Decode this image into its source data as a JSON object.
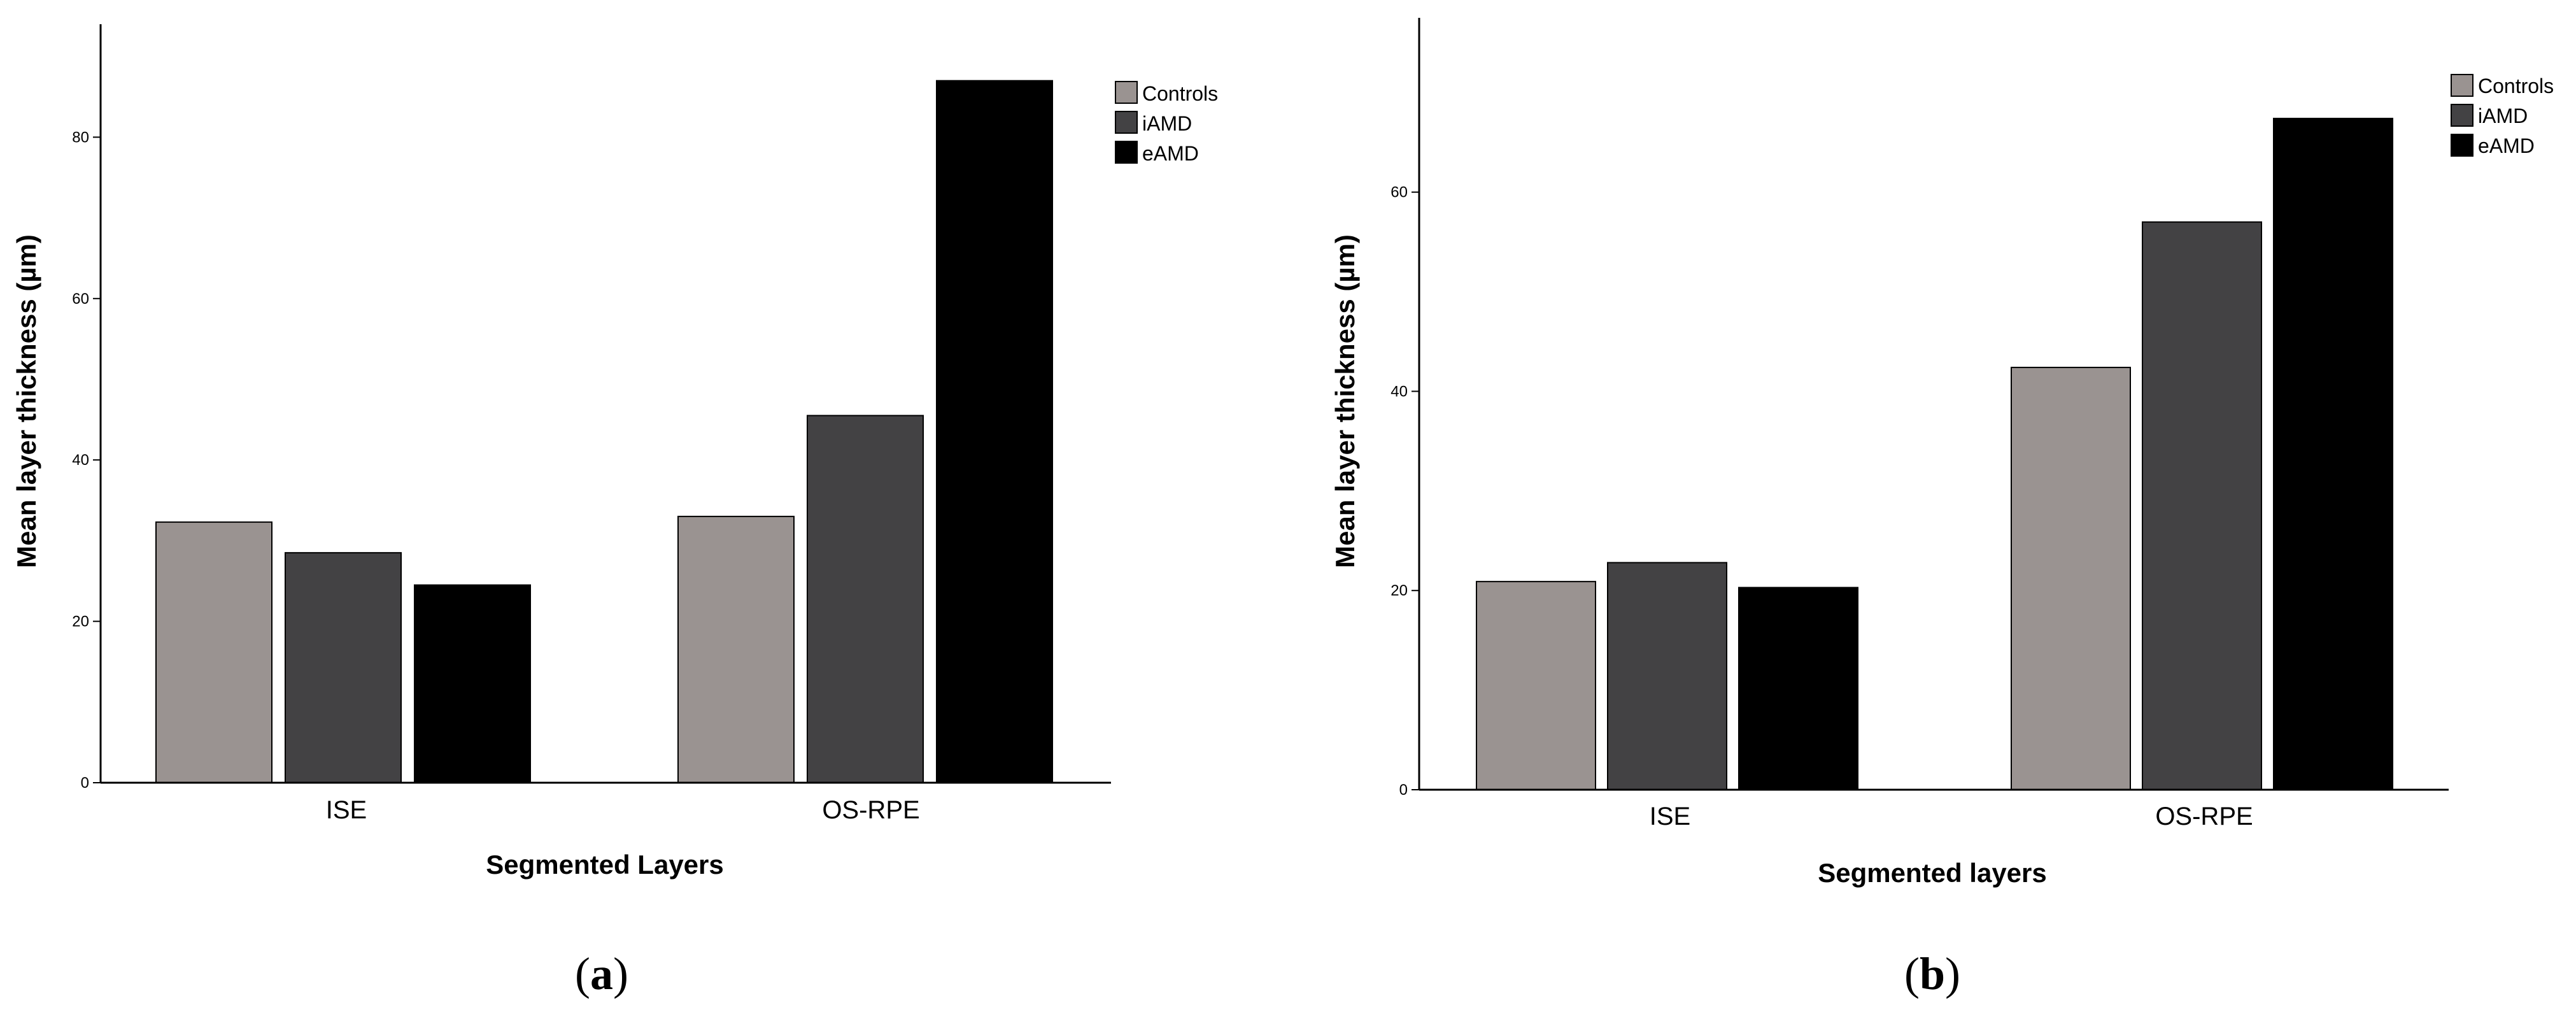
{
  "colors": {
    "Controls": "#9a9391",
    "iAMD": "#434244",
    "eAMD": "#000000",
    "axis": "#000000",
    "background": "#ffffff"
  },
  "chart_data": [
    {
      "type": "bar",
      "panel_label": "a",
      "categories": [
        "ISE",
        "OS-RPE"
      ],
      "series": [
        {
          "name": "Controls",
          "values": [
            32.3,
            33.0
          ]
        },
        {
          "name": "iAMD",
          "values": [
            28.5,
            45.5
          ]
        },
        {
          "name": "eAMD",
          "values": [
            24.5,
            87.0
          ]
        }
      ],
      "xlabel": "Segmented Layers",
      "ylabel": "Mean layer thickness (µm)",
      "ylim": [
        0,
        94
      ],
      "yticks": [
        0,
        20,
        40,
        60,
        80
      ],
      "grid": false,
      "legend_position": "top-right"
    },
    {
      "type": "bar",
      "panel_label": "b",
      "categories": [
        "ISE",
        "OS-RPE"
      ],
      "series": [
        {
          "name": "Controls",
          "values": [
            20.9,
            42.4
          ]
        },
        {
          "name": "iAMD",
          "values": [
            22.8,
            57.0
          ]
        },
        {
          "name": "eAMD",
          "values": [
            20.3,
            67.4
          ]
        }
      ],
      "xlabel": "Segmented layers",
      "ylabel": "Mean layer thickness (µm)",
      "ylim": [
        0,
        77.5
      ],
      "yticks": [
        0,
        20,
        40,
        60
      ],
      "grid": false,
      "legend_position": "top-right"
    }
  ]
}
